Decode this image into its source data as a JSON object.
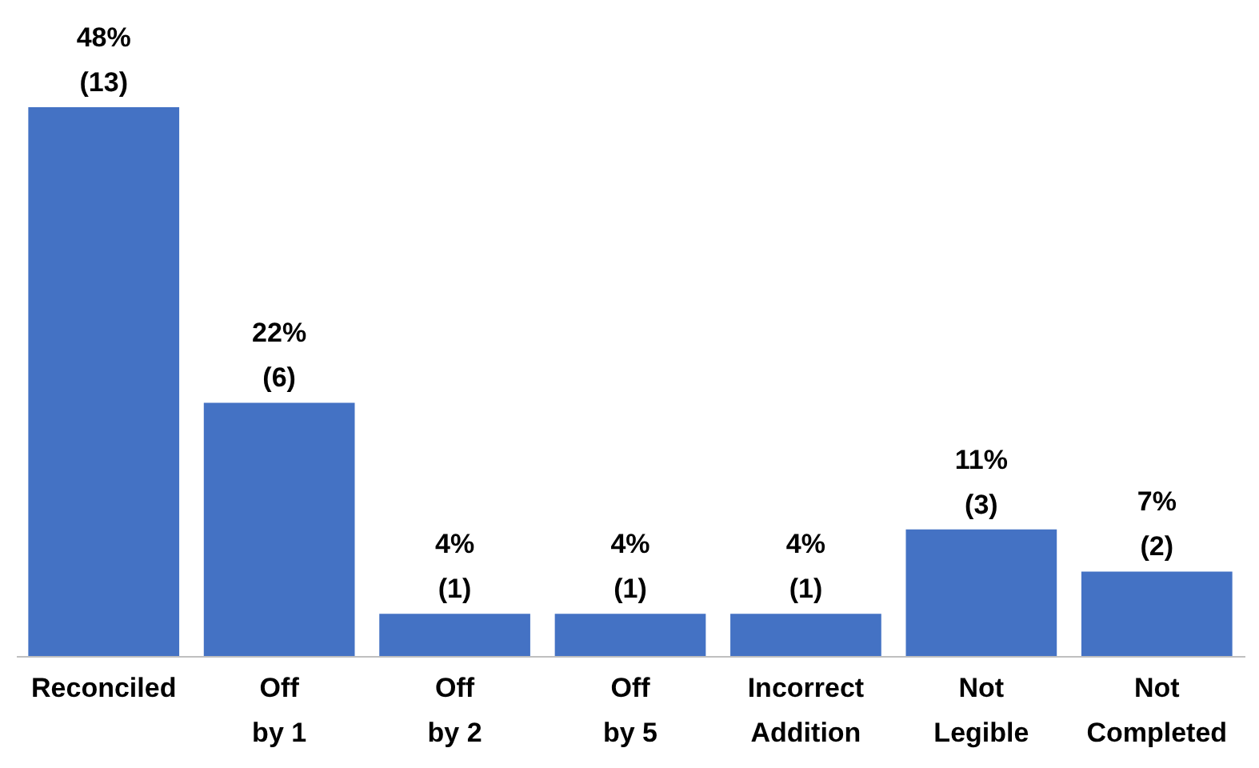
{
  "chart_data": {
    "type": "bar",
    "categories": [
      "Reconciled",
      "Off\nby 1",
      "Off\nby  2",
      "Off\nby 5",
      "Incorrect\nAddition",
      "Not\nLegible",
      "Not\nCompleted"
    ],
    "values": [
      13,
      6,
      1,
      1,
      1,
      3,
      2
    ],
    "value_labels": [
      "48%\n(13)",
      "22%\n(6)",
      "4%\n(1)",
      "4%\n(1)",
      "4%\n(1)",
      "11%\n(3)",
      "7%\n(2)"
    ],
    "color": "#4472c4",
    "grid": false
  }
}
